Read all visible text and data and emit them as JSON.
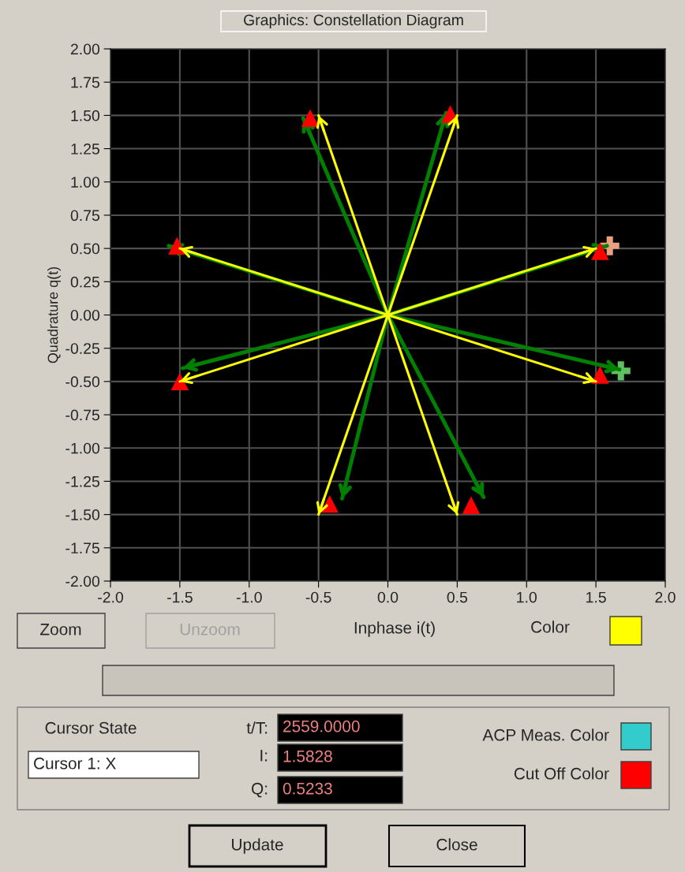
{
  "chart_data": {
    "type": "line",
    "title": "Graphics: Constellation Diagram",
    "xlabel": "Inphase i(t)",
    "ylabel": "Quadrature q(t)",
    "series": [
      {
        "color": "#ffff00",
        "x": [
          0,
          -0.5,
          0,
          0.5,
          0,
          -1.5,
          0,
          -1.5,
          0,
          -0.5,
          0,
          0.5,
          0,
          1.5,
          0,
          1.5
        ],
        "values": [
          0,
          1.5,
          0,
          1.5,
          0,
          0.5,
          0,
          -0.5,
          0,
          -1.5,
          0,
          -1.5,
          0,
          -0.5,
          0,
          0.5
        ]
      },
      {
        "color": "#008000",
        "x": [
          0,
          -0.61,
          0,
          0.42,
          0,
          -1.58,
          0,
          -1.48,
          0,
          -0.33,
          0,
          0.69,
          0,
          1.67,
          0,
          1.58
        ],
        "values": [
          0,
          1.48,
          0,
          1.52,
          0,
          0.52,
          0,
          -0.4,
          0,
          -1.38,
          0,
          -1.37,
          0,
          -0.41,
          0,
          0.52
        ]
      },
      {
        "type": "scatter",
        "color": "#ff0000",
        "marker": "triangle",
        "x": [
          -0.56,
          0.45,
          -1.52,
          -1.5,
          -0.42,
          0.6,
          1.53,
          1.53
        ],
        "values": [
          1.48,
          1.51,
          0.52,
          -0.5,
          -1.42,
          -1.43,
          -0.45,
          0.48
        ]
      },
      {
        "type": "scatter",
        "marker": "cross",
        "colors": [
          "#e8a080",
          "#60c060"
        ],
        "x": [
          1.6,
          1.68
        ],
        "values": [
          0.52,
          -0.42
        ]
      }
    ],
    "xlim": [
      -2,
      2
    ],
    "xticks": [
      {
        "value": -2,
        "label": "-2.0"
      },
      -1.5,
      {
        "value": -1,
        "label": "-1.0"
      },
      -0.5,
      {
        "value": 0,
        "label": "0.0"
      },
      0.5,
      {
        "value": 1,
        "label": "1.0"
      },
      1.5,
      {
        "value": 2,
        "label": "2.0"
      }
    ],
    "ylim": [
      -2,
      2
    ],
    "yticks": [
      {
        "value": 2,
        "label": "2.00"
      },
      {
        "value": 1.75,
        "label": "1.75"
      },
      {
        "value": 1.5,
        "label": "1.50"
      },
      {
        "value": 1.25,
        "label": "1.25"
      },
      {
        "value": 1,
        "label": "1.00"
      },
      {
        "value": 0.75,
        "label": "0.75"
      },
      {
        "value": 0.5,
        "label": "0.50"
      },
      {
        "value": 0.25,
        "label": "0.25"
      },
      {
        "value": 0,
        "label": "0.00"
      },
      {
        "value": -0.25,
        "label": "-0.25"
      },
      {
        "value": -0.5,
        "label": "-0.50"
      },
      {
        "value": -0.75,
        "label": "-0.75"
      },
      {
        "value": -1,
        "label": "-1.00"
      },
      {
        "value": -1.25,
        "label": "-1.25"
      },
      {
        "value": -1.5,
        "label": "-1.50"
      },
      {
        "value": -1.75,
        "label": "-1.75"
      },
      {
        "value": -2,
        "label": "-2.00"
      }
    ],
    "grid": true,
    "annotations": [
      "Zoom",
      "Unzoom",
      "Color",
      "Cursor State",
      "Cursor 1: X",
      "t/T:",
      "2559.0000",
      "I:",
      "1.5828",
      "Q:",
      "0.5233",
      "ACP Meas. Color",
      "Cut Off Color",
      "Update",
      "Close"
    ]
  }
}
